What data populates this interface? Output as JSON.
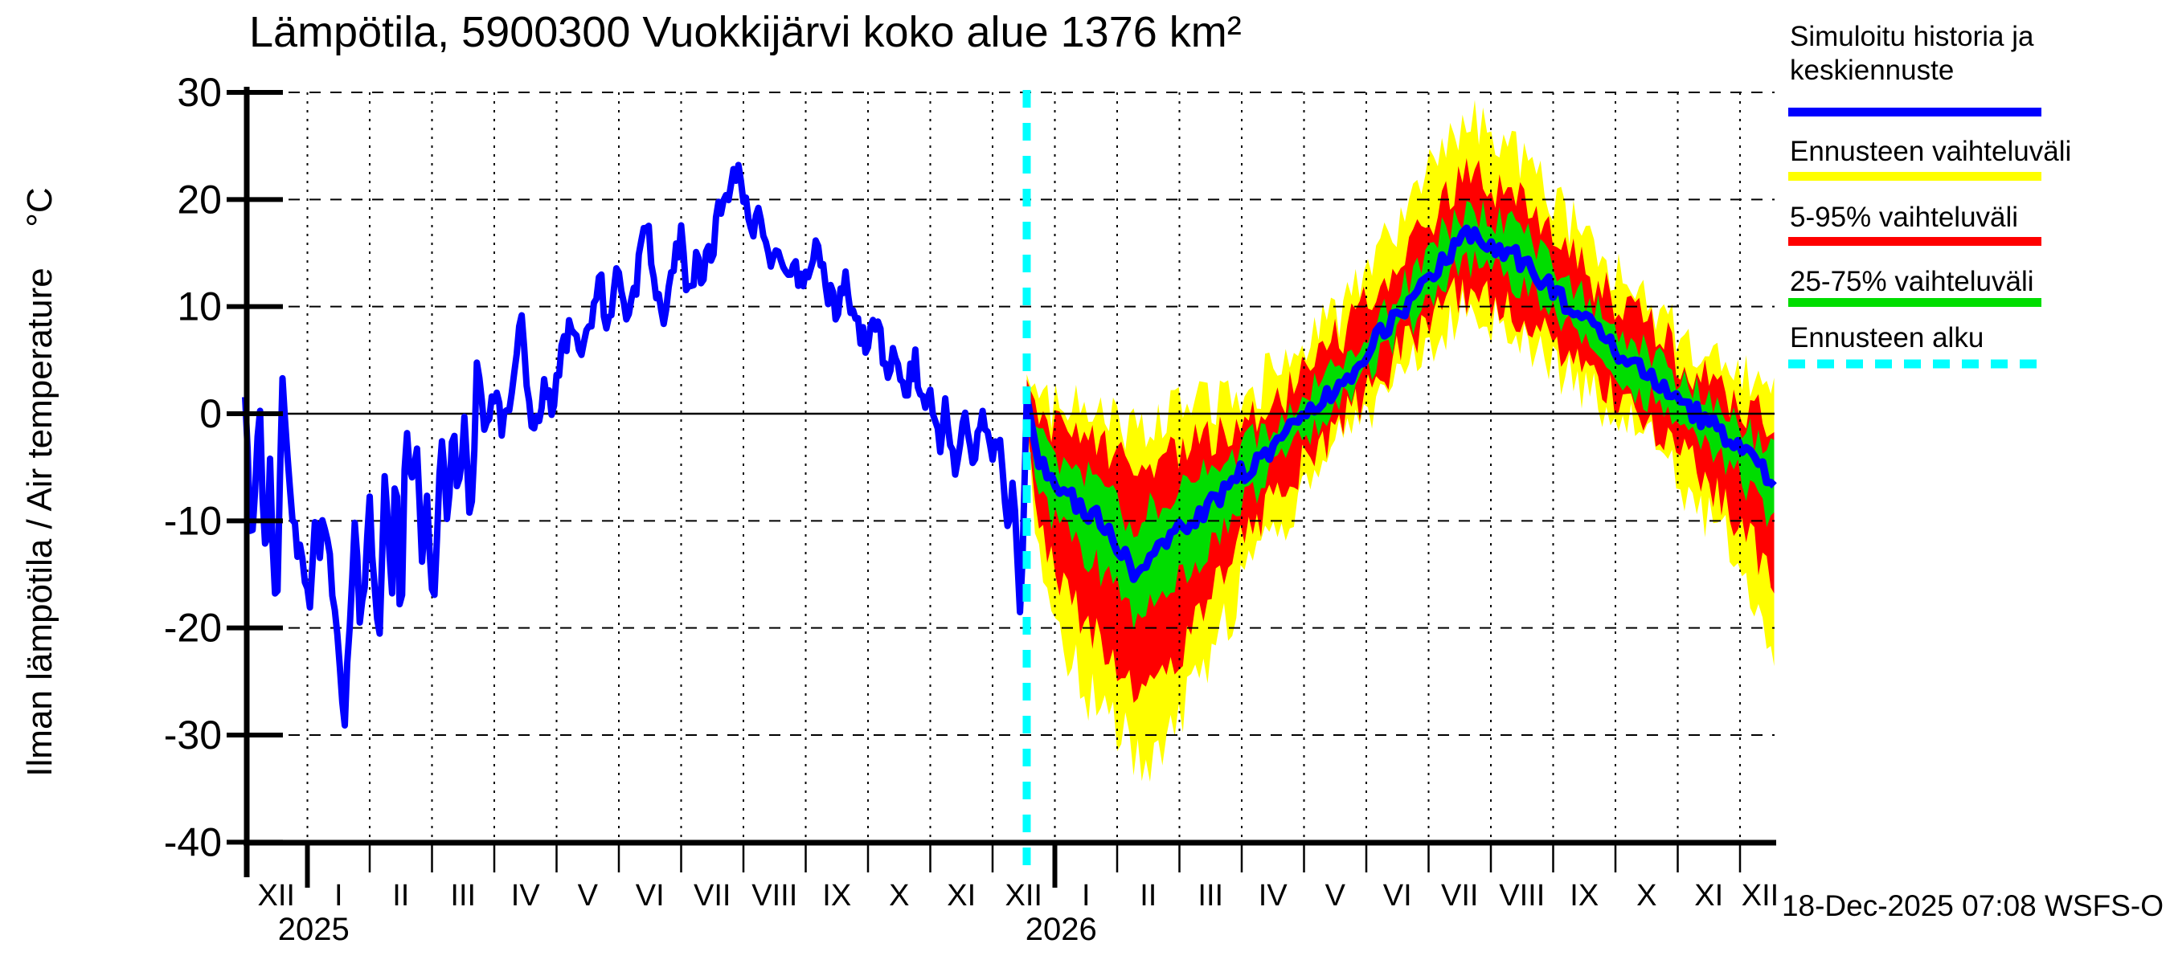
{
  "title": "Lämpötila, 5900300 Vuokkijärvi koko alue 1376 km²",
  "y_axis_label": "Ilman lämpötila / Air temperature",
  "y_axis_unit": "°C",
  "datestamp": "18-Dec-2025 07:08 WSFS-O",
  "legend": [
    {
      "lines": [
        "Simuloitu historia ja",
        "keskiennuste"
      ],
      "color": "#0000ff",
      "style": "solid"
    },
    {
      "lines": [
        "Ennusteen vaihteluväli"
      ],
      "color": "#ffff00",
      "style": "solid"
    },
    {
      "lines": [
        "5-95% vaihteluväli"
      ],
      "color": "#ff0000",
      "style": "solid"
    },
    {
      "lines": [
        "25-75% vaihteluväli"
      ],
      "color": "#00dd00",
      "style": "solid"
    },
    {
      "lines": [
        "Ennusteen alku"
      ],
      "color": "#00ffff",
      "style": "dashed"
    }
  ],
  "chart_data": {
    "type": "line",
    "title": "Lämpötila, 5900300 Vuokkijärvi koko alue 1376 km²",
    "x_axis": {
      "unit": "month",
      "months": [
        "XII",
        "I",
        "II",
        "III",
        "IV",
        "V",
        "VI",
        "VII",
        "VIII",
        "IX",
        "X",
        "XI",
        "XII",
        "I",
        "II",
        "III",
        "IV",
        "V",
        "VI",
        "VII",
        "VIII",
        "IX",
        "X",
        "XI",
        "XII"
      ],
      "years": [
        {
          "label": "2025",
          "t": 1.1
        },
        {
          "label": "2026",
          "t": 13.1
        }
      ]
    },
    "y_axis": {
      "ticks": [
        30,
        20,
        10,
        0,
        -10,
        -20,
        -30,
        -40
      ],
      "min": -40,
      "max": 30,
      "zero_line_solid": true
    },
    "grid": {
      "horizontal": "dashed",
      "vertical": "dotted-monthly"
    },
    "forecast_start_t": 12.548,
    "forecast_end_t": 24.548,
    "forecast_start_color": "#00ffff",
    "render_noise": {
      "seed": 20251218,
      "history": 1.3,
      "median": 1.0,
      "band_25_75": 1.6,
      "band_5_95": 2.2,
      "band_minmax": 2.6
    },
    "series": {
      "history": {
        "name": "Simuloitu historia ja keskiennuste",
        "color": "#0000ff",
        "anchors_t_degC": [
          [
            0,
            2.5
          ],
          [
            0.1,
            -13
          ],
          [
            0.23,
            1
          ],
          [
            0.33,
            -15
          ],
          [
            0.4,
            -5
          ],
          [
            0.5,
            -21
          ],
          [
            0.6,
            2.5
          ],
          [
            0.77,
            -10
          ],
          [
            0.87,
            -13
          ],
          [
            1.03,
            -18.5
          ],
          [
            1.13,
            -9
          ],
          [
            1.2,
            -12.5
          ],
          [
            1.3,
            -9
          ],
          [
            1.45,
            -20
          ],
          [
            1.6,
            -29
          ],
          [
            1.77,
            -9
          ],
          [
            1.85,
            -20.5
          ],
          [
            2.0,
            -9
          ],
          [
            2.15,
            -22.5
          ],
          [
            2.25,
            -4
          ],
          [
            2.35,
            -18
          ],
          [
            2.42,
            -4
          ],
          [
            2.5,
            -22
          ],
          [
            2.57,
            -1.5
          ],
          [
            2.7,
            -8
          ],
          [
            2.75,
            -1
          ],
          [
            2.85,
            -14.5
          ],
          [
            2.92,
            -7
          ],
          [
            3.02,
            -18.5
          ],
          [
            3.15,
            -1.5
          ],
          [
            3.25,
            -10.5
          ],
          [
            3.33,
            -0.5
          ],
          [
            3.42,
            -9
          ],
          [
            3.52,
            0.5
          ],
          [
            3.62,
            -12.5
          ],
          [
            3.72,
            4
          ],
          [
            3.85,
            -1
          ],
          [
            4.0,
            1.5
          ],
          [
            4.13,
            -1
          ],
          [
            4.3,
            2
          ],
          [
            4.42,
            10.5
          ],
          [
            4.55,
            1
          ],
          [
            4.65,
            -2
          ],
          [
            4.8,
            3
          ],
          [
            4.93,
            1
          ],
          [
            5.0,
            3
          ],
          [
            5.15,
            7
          ],
          [
            5.3,
            8.5
          ],
          [
            5.4,
            5
          ],
          [
            5.55,
            9
          ],
          [
            5.7,
            14
          ],
          [
            5.8,
            7.5
          ],
          [
            5.95,
            13
          ],
          [
            6.05,
            12.5
          ],
          [
            6.15,
            8
          ],
          [
            6.3,
            13
          ],
          [
            6.42,
            19.5
          ],
          [
            6.55,
            12.5
          ],
          [
            6.72,
            8.5
          ],
          [
            6.85,
            13
          ],
          [
            7.0,
            16.5
          ],
          [
            7.1,
            10.5
          ],
          [
            7.25,
            14.5
          ],
          [
            7.35,
            13
          ],
          [
            7.5,
            15.5
          ],
          [
            7.65,
            20
          ],
          [
            7.8,
            21
          ],
          [
            7.9,
            23.5
          ],
          [
            8.0,
            21
          ],
          [
            8.1,
            17
          ],
          [
            8.25,
            19
          ],
          [
            8.4,
            14
          ],
          [
            8.55,
            16.5
          ],
          [
            8.7,
            12.5
          ],
          [
            8.8,
            15
          ],
          [
            8.95,
            11.5
          ],
          [
            9.05,
            13.5
          ],
          [
            9.17,
            16.5
          ],
          [
            9.35,
            11.5
          ],
          [
            9.5,
            9.5
          ],
          [
            9.65,
            12.5
          ],
          [
            9.8,
            8
          ],
          [
            10.0,
            6.5
          ],
          [
            10.15,
            8.5
          ],
          [
            10.3,
            4
          ],
          [
            10.45,
            6.5
          ],
          [
            10.6,
            2
          ],
          [
            10.75,
            5
          ],
          [
            10.9,
            0.5
          ],
          [
            11.0,
            2.5
          ],
          [
            11.15,
            -3
          ],
          [
            11.25,
            1.5
          ],
          [
            11.4,
            -6
          ],
          [
            11.55,
            0.5
          ],
          [
            11.7,
            -4.5
          ],
          [
            11.85,
            -0.5
          ],
          [
            12.0,
            -4
          ],
          [
            12.1,
            -2
          ],
          [
            12.25,
            -12
          ],
          [
            12.33,
            -6.5
          ],
          [
            12.45,
            -20.5
          ],
          [
            12.5,
            -9
          ],
          [
            12.548,
            1.5
          ]
        ]
      },
      "forecast": {
        "name": "keskiennuste + vaihteluvälit",
        "median_color": "#0000ff",
        "band_colors": {
          "25_75": "#00dd00",
          "5_95": "#ff0000",
          "minmax": "#ffff00"
        },
        "columns": [
          "t",
          "median",
          "p25",
          "p75",
          "p05",
          "p95",
          "min",
          "max"
        ],
        "anchors": [
          [
            12.548,
            1.5,
            0.5,
            2.5,
            -0.5,
            3,
            -1.5,
            3.5
          ],
          [
            12.7,
            -4,
            -6,
            -2,
            -9,
            -0.5,
            -12,
            1
          ],
          [
            12.9,
            -6,
            -9,
            -3.5,
            -13.5,
            -1,
            -17,
            1
          ],
          [
            13.2,
            -7.5,
            -11,
            -4.5,
            -17,
            -1.5,
            -22,
            0.5
          ],
          [
            13.5,
            -9,
            -13,
            -5.5,
            -19.5,
            -2,
            -26,
            0
          ],
          [
            13.8,
            -10.5,
            -15,
            -6.5,
            -21.5,
            -3,
            -28,
            -0.5
          ],
          [
            14.1,
            -13,
            -17,
            -9,
            -24,
            -4.5,
            -30,
            -1
          ],
          [
            14.25,
            -15.5,
            -19.5,
            -11.5,
            -25.5,
            -6,
            -32,
            -2
          ],
          [
            14.5,
            -13,
            -17.5,
            -9,
            -24,
            -5,
            -33.5,
            -1
          ],
          [
            14.8,
            -12,
            -16.5,
            -8,
            -23,
            -4,
            -31,
            -0.5
          ],
          [
            15.0,
            -11,
            -15.5,
            -7,
            -22,
            -3.5,
            -28.5,
            0
          ],
          [
            15.3,
            -9.5,
            -13.5,
            -6,
            -19,
            -2.5,
            -25,
            0.5
          ],
          [
            15.7,
            -7.5,
            -11,
            -4.5,
            -15.5,
            -1.5,
            -20.5,
            1
          ],
          [
            16.0,
            -5.5,
            -8.5,
            -3,
            -12,
            -0.5,
            -16,
            2
          ],
          [
            16.3,
            -4,
            -6.5,
            -1.5,
            -9.5,
            0.5,
            -13,
            3
          ],
          [
            16.7,
            -2,
            -4,
            -0.5,
            -6.5,
            2,
            -9.5,
            4.5
          ],
          [
            17.0,
            -0.5,
            -2.5,
            1.5,
            -4.5,
            3.5,
            -7,
            6
          ],
          [
            17.3,
            1,
            -0.5,
            3,
            -2.5,
            5.5,
            -4,
            8
          ],
          [
            17.7,
            3.5,
            2,
            5.5,
            0,
            8,
            -1.5,
            10.5
          ],
          [
            18.0,
            6,
            4,
            8,
            2,
            10.5,
            0.5,
            13
          ],
          [
            18.3,
            8,
            6,
            10,
            4,
            13,
            2,
            16
          ],
          [
            18.7,
            10.5,
            8.5,
            12.5,
            6.5,
            15.5,
            4.5,
            19.5
          ],
          [
            19.0,
            13,
            11,
            15,
            8.5,
            18,
            6.5,
            22
          ],
          [
            19.3,
            15,
            13,
            17.5,
            10.5,
            20.5,
            8.5,
            25
          ],
          [
            19.65,
            16.5,
            14,
            19,
            11.5,
            22,
            9.5,
            27
          ],
          [
            20.0,
            16,
            13.5,
            18.5,
            11,
            21.5,
            9,
            26
          ],
          [
            20.3,
            15,
            12.5,
            17.5,
            10,
            20.5,
            8,
            24.5
          ],
          [
            20.65,
            13.5,
            11.5,
            16,
            9,
            19,
            7,
            22.5
          ],
          [
            21.0,
            11.5,
            9.5,
            13.5,
            7,
            16.5,
            5,
            20
          ],
          [
            21.3,
            10,
            8,
            12,
            5.5,
            14.5,
            3.5,
            18
          ],
          [
            21.65,
            8,
            6,
            10,
            4,
            12.5,
            2,
            15.5
          ],
          [
            22.0,
            6,
            4,
            8,
            2,
            10.5,
            0,
            13
          ],
          [
            22.3,
            4.5,
            2.5,
            6.5,
            0.5,
            9,
            -1.5,
            11.5
          ],
          [
            22.65,
            3,
            1,
            5,
            -1,
            7.5,
            -3,
            10
          ],
          [
            23.0,
            1,
            -1,
            3,
            -3.5,
            5.5,
            -6,
            8
          ],
          [
            23.3,
            0,
            -2.5,
            2,
            -5.5,
            4,
            -8.5,
            6.5
          ],
          [
            23.65,
            -1.5,
            -4,
            0.5,
            -7.5,
            2.5,
            -11,
            5
          ],
          [
            24.0,
            -3,
            -6,
            -1,
            -10,
            1,
            -14,
            3.5
          ],
          [
            24.3,
            -5,
            -8,
            -2.5,
            -13,
            0,
            -18,
            2.5
          ],
          [
            24.548,
            -7,
            -10.5,
            -3.5,
            -17,
            -0.5,
            -24,
            1.5
          ]
        ]
      }
    }
  }
}
